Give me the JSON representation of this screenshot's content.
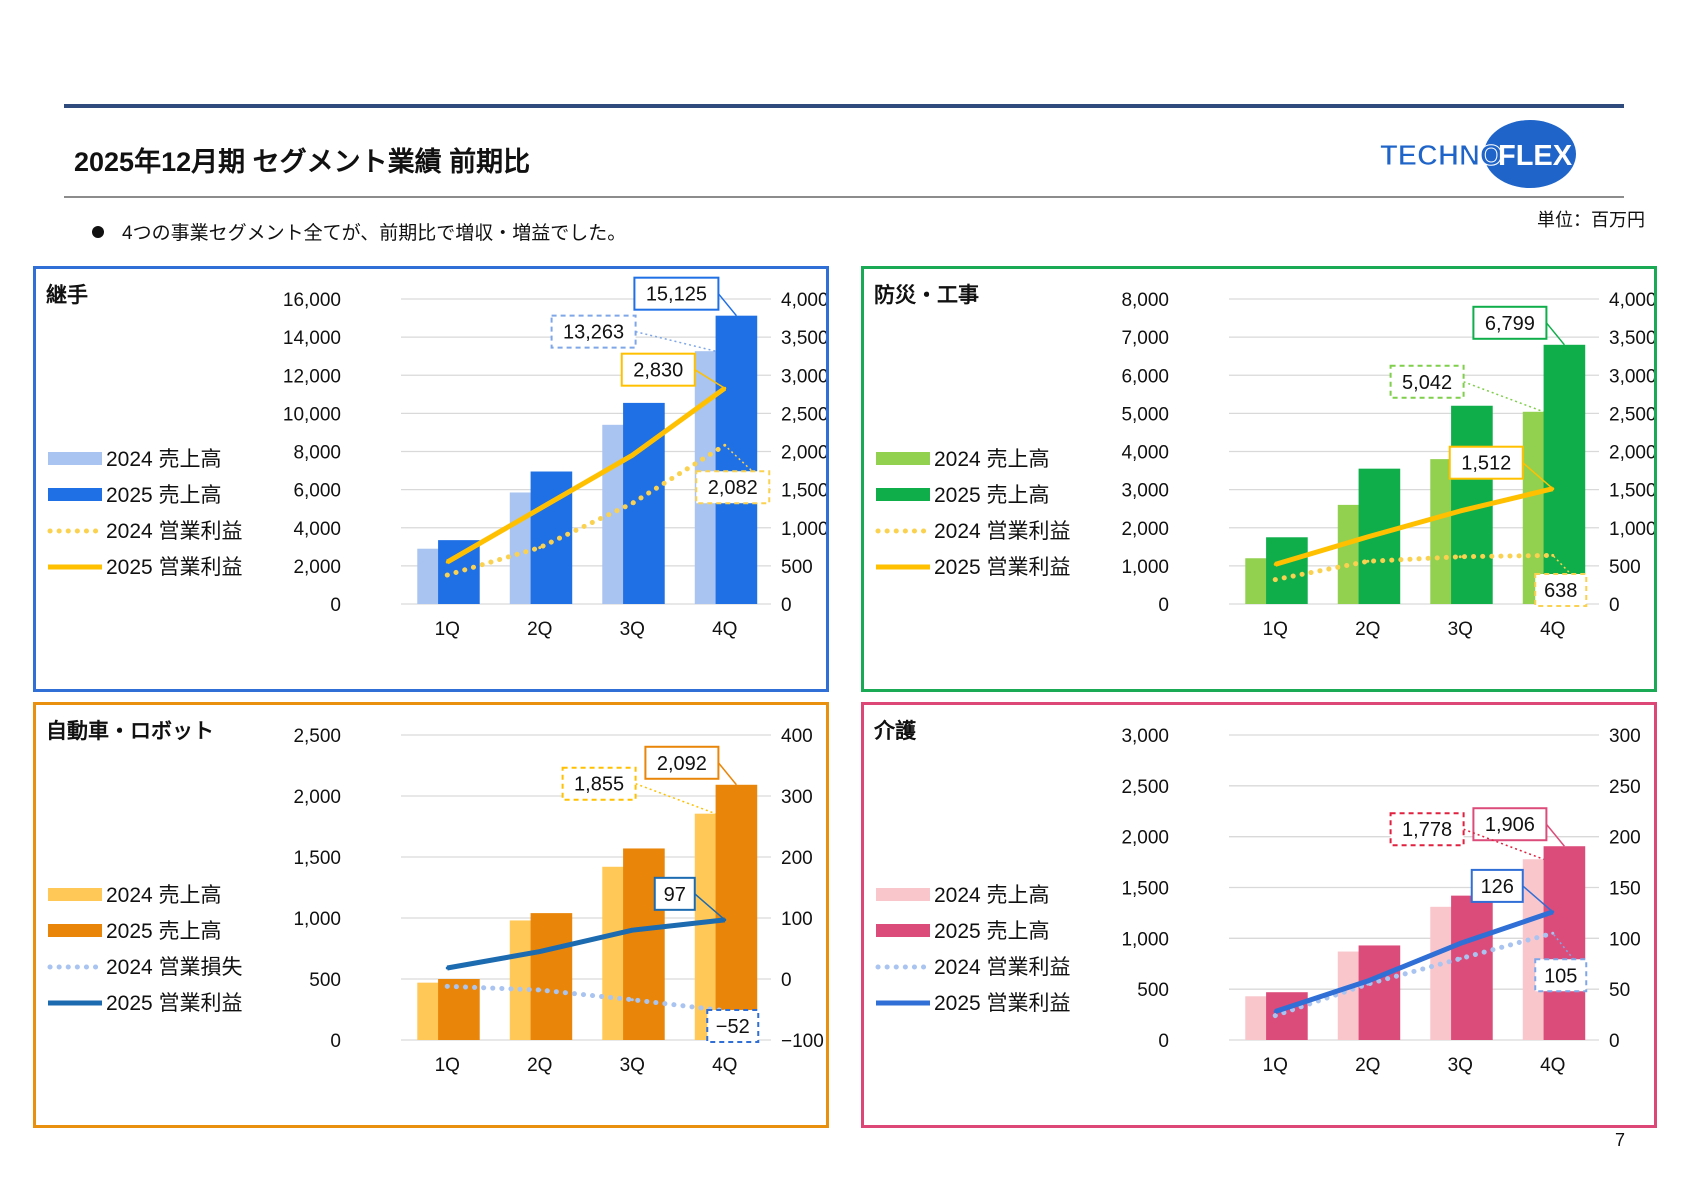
{
  "header": {
    "title": "2025年12月期 セグメント業績 前期比",
    "bullet": "4つの事業セグメント全てが、前期比で増収・増益でした。",
    "unit": "単位：百万円",
    "page_number": "7",
    "logo_text": "TECHNOFLEX"
  },
  "colors": {
    "rule": "#2f4a7c",
    "divider": "#8c8c8c",
    "logo_blue": "#1f64c8"
  },
  "chart_data": [
    {
      "id": "joint",
      "type": "bar",
      "title": "継手",
      "border_color": "#2f6fd6",
      "categories": [
        "1Q",
        "2Q",
        "3Q",
        "4Q"
      ],
      "y_left": {
        "min": 0,
        "max": 16000,
        "ticks": [
          "16,000",
          "14,000",
          "12,000",
          "10,000",
          "8,000",
          "6,000",
          "4,000",
          "2,000",
          "0"
        ]
      },
      "y_right": {
        "min": 0,
        "max": 4000,
        "ticks": [
          "4,000",
          "3,500",
          "3,000",
          "2,500",
          "2,000",
          "1,500",
          "1,000",
          "500",
          "0"
        ]
      },
      "series": [
        {
          "name": "2024 売上高",
          "kind": "bar",
          "axis": "left",
          "color": "#a9c4f0",
          "values": [
            2900,
            5850,
            9400,
            13263
          ]
        },
        {
          "name": "2025 売上高",
          "kind": "bar",
          "axis": "left",
          "color": "#1f6fe5",
          "values": [
            3350,
            6950,
            10550,
            15125
          ]
        },
        {
          "name": "2024 営業利益",
          "kind": "line",
          "style": "dotted",
          "axis": "right",
          "color": "#fbd150",
          "values": [
            380,
            740,
            1320,
            2082
          ]
        },
        {
          "name": "2025 営業利益",
          "kind": "line",
          "style": "solid",
          "axis": "right",
          "color": "#ffc000",
          "values": [
            550,
            1250,
            1950,
            2830
          ]
        }
      ],
      "callouts": [
        {
          "text": "15,125",
          "series": 1,
          "point": 3,
          "color": "#1f6fe5",
          "dashed": false
        },
        {
          "text": "13,263",
          "series": 0,
          "point": 3,
          "color": "#7fa7e8",
          "dashed": true
        },
        {
          "text": "2,830",
          "series": 3,
          "point": 3,
          "color": "#ffc000",
          "dashed": false
        },
        {
          "text": "2,082",
          "series": 2,
          "point": 3,
          "color": "#fbd150",
          "dashed": true
        }
      ]
    },
    {
      "id": "disaster",
      "type": "bar",
      "title": "防災・工事",
      "border_color": "#1aaa55",
      "categories": [
        "1Q",
        "2Q",
        "3Q",
        "4Q"
      ],
      "y_left": {
        "min": 0,
        "max": 8000,
        "ticks": [
          "8,000",
          "7,000",
          "6,000",
          "5,000",
          "4,000",
          "3,000",
          "2,000",
          "1,000",
          "0"
        ]
      },
      "y_right": {
        "min": 0,
        "max": 4000,
        "ticks": [
          "4,000",
          "3,500",
          "3,000",
          "2,500",
          "2,000",
          "1,500",
          "1,000",
          "500",
          "0"
        ]
      },
      "series": [
        {
          "name": "2024 売上高",
          "kind": "bar",
          "axis": "left",
          "color": "#92d050",
          "values": [
            1200,
            2600,
            3800,
            5042
          ]
        },
        {
          "name": "2025 売上高",
          "kind": "bar",
          "axis": "left",
          "color": "#0fae4b",
          "values": [
            1750,
            3550,
            5200,
            6799
          ]
        },
        {
          "name": "2024 営業利益",
          "kind": "line",
          "style": "dotted",
          "axis": "right",
          "color": "#fbd150",
          "values": [
            320,
            560,
            620,
            638
          ]
        },
        {
          "name": "2025 営業利益",
          "kind": "line",
          "style": "solid",
          "axis": "right",
          "color": "#ffc000",
          "values": [
            520,
            880,
            1220,
            1512
          ]
        }
      ],
      "callouts": [
        {
          "text": "6,799",
          "series": 1,
          "point": 3,
          "color": "#0fae4b",
          "dashed": false
        },
        {
          "text": "5,042",
          "series": 0,
          "point": 3,
          "color": "#7fcf4a",
          "dashed": true
        },
        {
          "text": "1,512",
          "series": 3,
          "point": 3,
          "color": "#ffc000",
          "dashed": false
        },
        {
          "text": "638",
          "series": 2,
          "point": 3,
          "color": "#fbd150",
          "dashed": true
        }
      ]
    },
    {
      "id": "auto",
      "type": "bar",
      "title": "自動車・ロボット",
      "border_color": "#e9900f",
      "categories": [
        "1Q",
        "2Q",
        "3Q",
        "4Q"
      ],
      "y_left": {
        "min": 0,
        "max": 2500,
        "ticks": [
          "2,500",
          "2,000",
          "1,500",
          "1,000",
          "500",
          "0"
        ]
      },
      "y_right": {
        "min": -100,
        "max": 400,
        "ticks": [
          "400",
          "300",
          "200",
          "100",
          "0",
          "−100"
        ]
      },
      "series": [
        {
          "name": "2024 売上高",
          "kind": "bar",
          "axis": "left",
          "color": "#ffc857",
          "values": [
            470,
            980,
            1420,
            1855
          ]
        },
        {
          "name": "2025 売上高",
          "kind": "bar",
          "axis": "left",
          "color": "#e9860a",
          "values": [
            500,
            1040,
            1570,
            2092
          ]
        },
        {
          "name": "2024 営業損失",
          "kind": "line",
          "style": "dotted",
          "axis": "right",
          "color": "#a9c4f0",
          "values": [
            -12,
            -18,
            -34,
            -52
          ]
        },
        {
          "name": "2025 営業利益",
          "kind": "line",
          "style": "solid",
          "axis": "right",
          "color": "#1c6ab0",
          "values": [
            18,
            45,
            80,
            97
          ]
        }
      ],
      "callouts": [
        {
          "text": "2,092",
          "series": 1,
          "point": 3,
          "color": "#e9860a",
          "dashed": false
        },
        {
          "text": "1,855",
          "series": 0,
          "point": 3,
          "color": "#ffc000",
          "dashed": true
        },
        {
          "text": "97",
          "series": 3,
          "point": 3,
          "color": "#1c6ab0",
          "dashed": false
        },
        {
          "text": "−52",
          "series": 2,
          "point": 3,
          "color": "#2f6fd6",
          "dashed": true
        }
      ]
    },
    {
      "id": "care",
      "type": "bar",
      "title": "介護",
      "border_color": "#dd4778",
      "categories": [
        "1Q",
        "2Q",
        "3Q",
        "4Q"
      ],
      "y_left": {
        "min": 0,
        "max": 3000,
        "ticks": [
          "3,000",
          "2,500",
          "2,000",
          "1,500",
          "1,000",
          "500",
          "0"
        ]
      },
      "y_right": {
        "min": 0,
        "max": 300,
        "ticks": [
          "300",
          "250",
          "200",
          "150",
          "100",
          "50",
          "0"
        ]
      },
      "series": [
        {
          "name": "2024 売上高",
          "kind": "bar",
          "axis": "left",
          "color": "#f9c6cc",
          "values": [
            430,
            870,
            1310,
            1778
          ]
        },
        {
          "name": "2025 売上高",
          "kind": "bar",
          "axis": "left",
          "color": "#dc4c7a",
          "values": [
            470,
            930,
            1420,
            1906
          ]
        },
        {
          "name": "2024 営業利益",
          "kind": "line",
          "style": "dotted",
          "axis": "right",
          "color": "#a9c4f0",
          "values": [
            24,
            55,
            80,
            105
          ]
        },
        {
          "name": "2025 営業利益",
          "kind": "line",
          "style": "solid",
          "axis": "right",
          "color": "#2f6fd6",
          "values": [
            28,
            58,
            95,
            126
          ]
        }
      ],
      "callouts": [
        {
          "text": "1,906",
          "series": 1,
          "point": 3,
          "color": "#dc4c7a",
          "dashed": false
        },
        {
          "text": "1,778",
          "series": 0,
          "point": 3,
          "color": "#e0203f",
          "dashed": true
        },
        {
          "text": "126",
          "series": 3,
          "point": 3,
          "color": "#2f6fd6",
          "dashed": false
        },
        {
          "text": "105",
          "series": 2,
          "point": 3,
          "color": "#7fa7e8",
          "dashed": true
        }
      ]
    }
  ]
}
